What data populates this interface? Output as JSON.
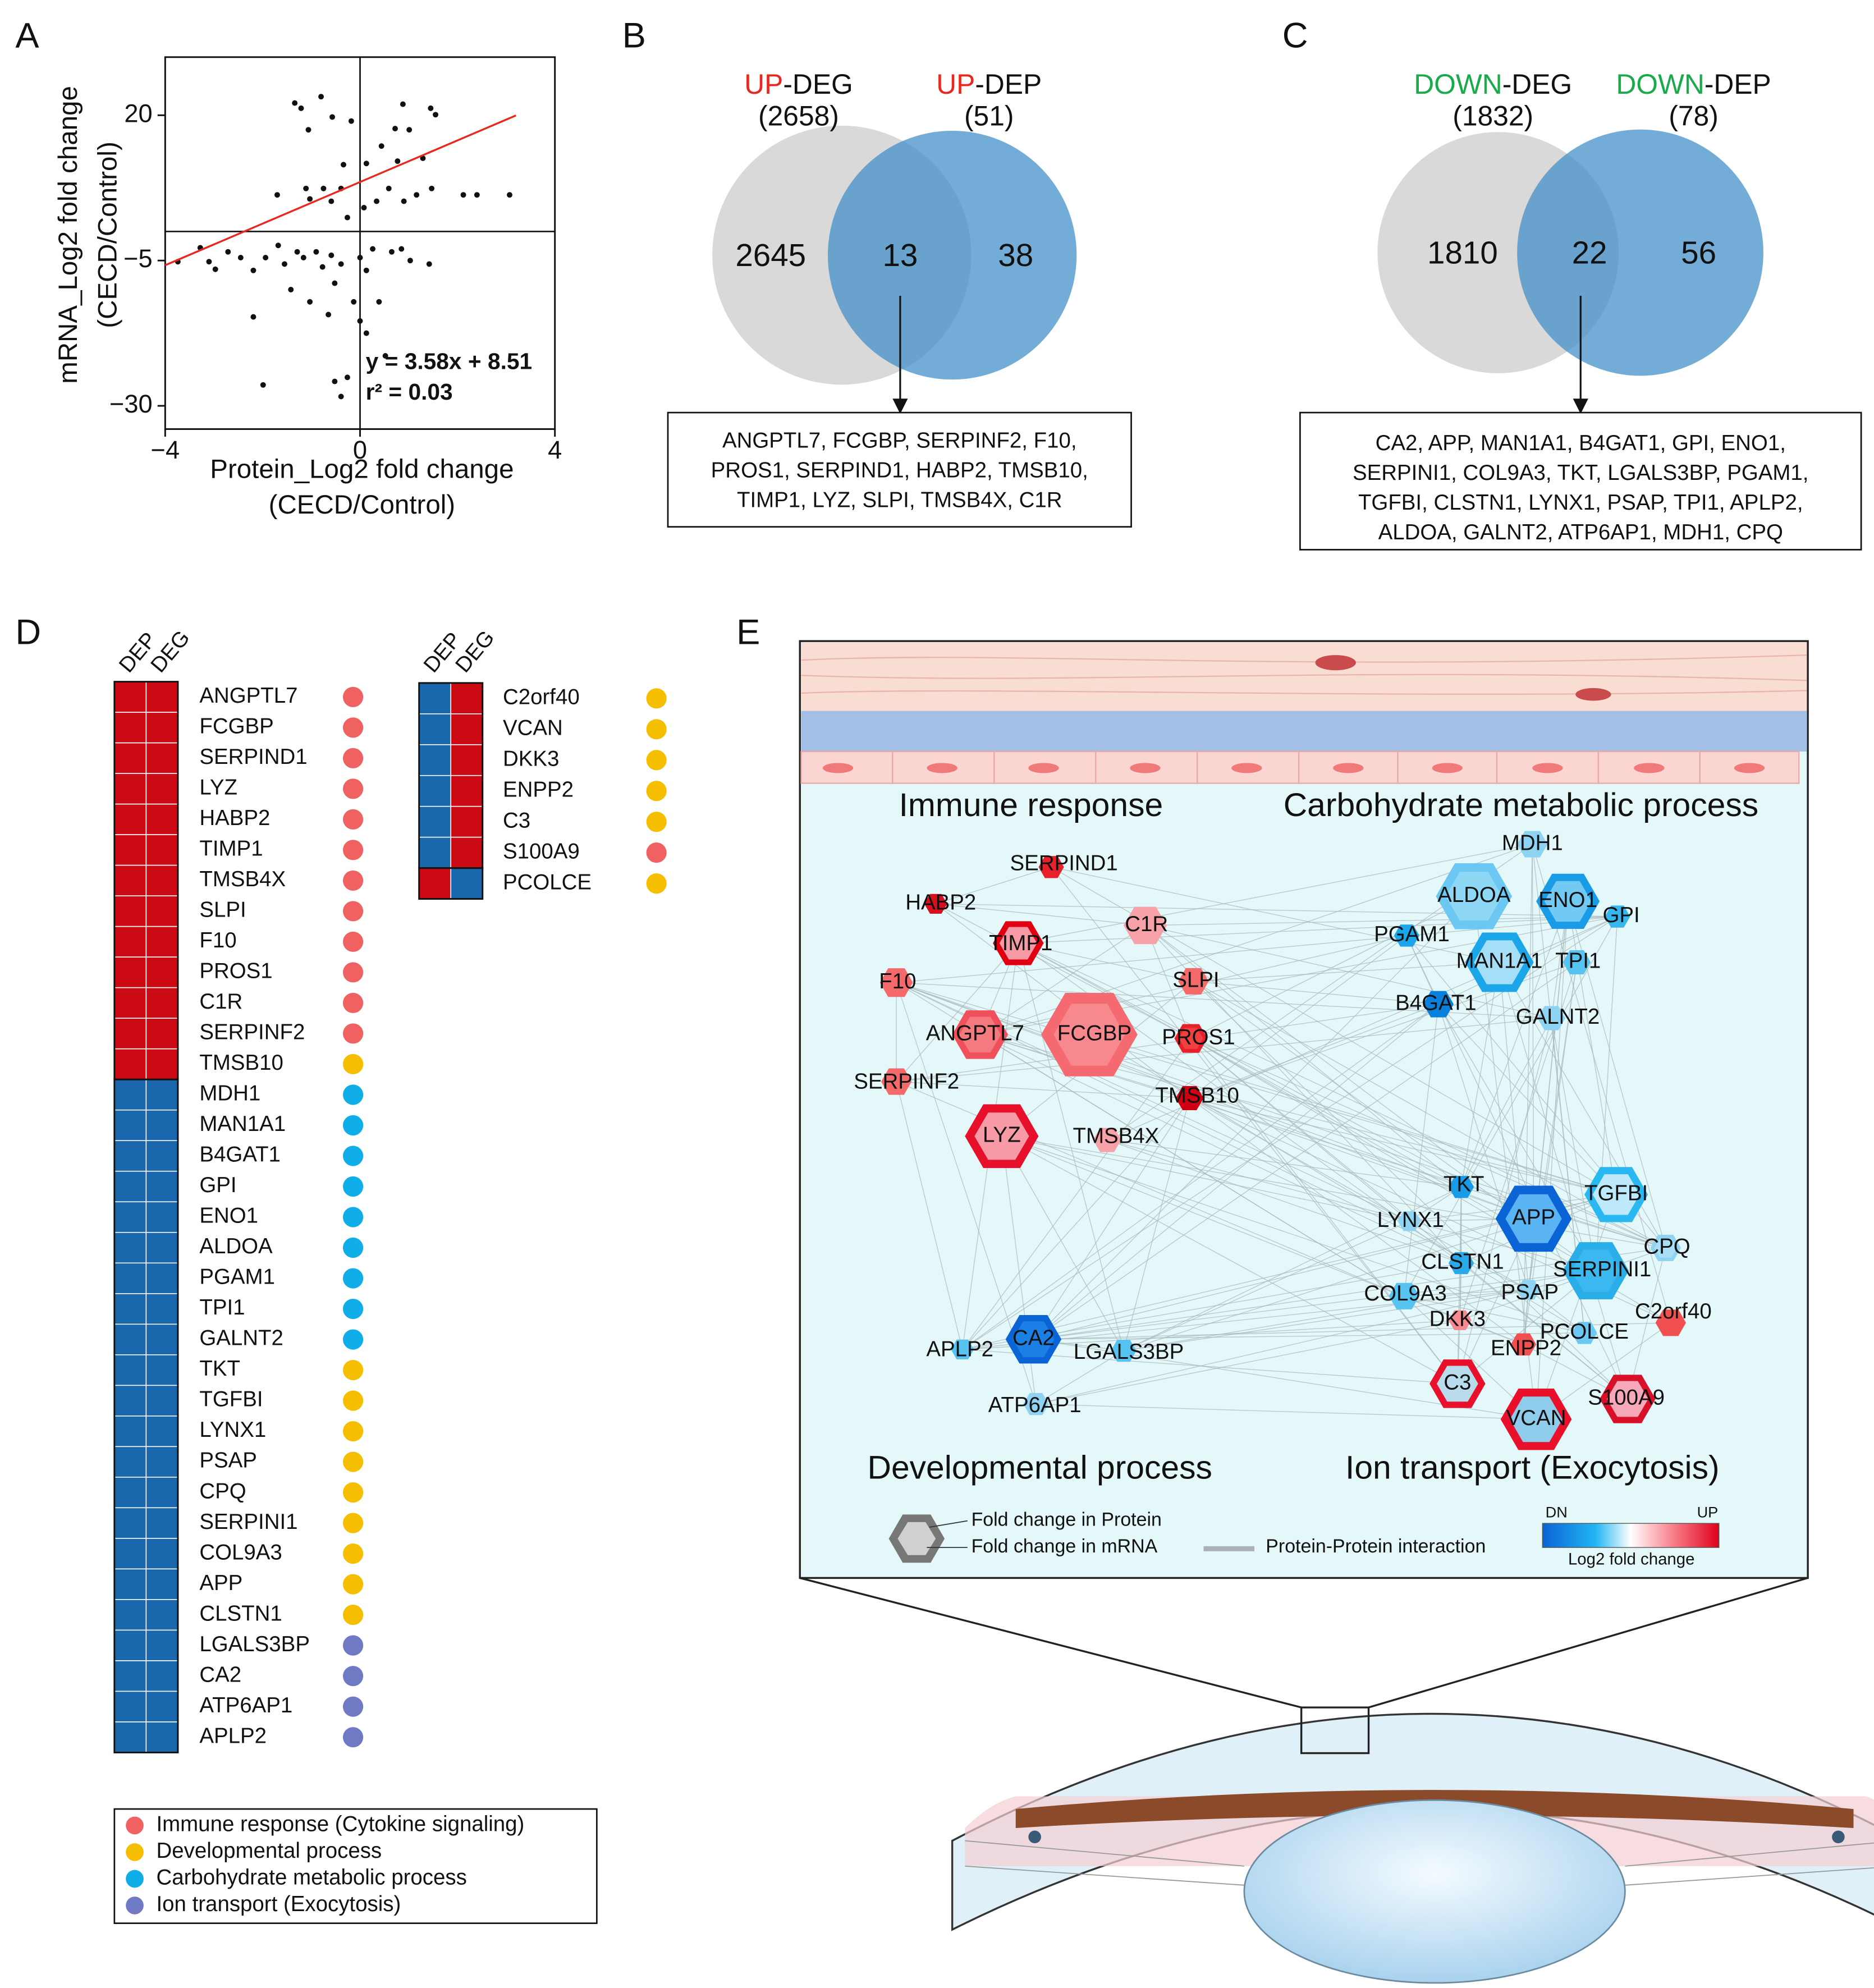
{
  "panel_letters": [
    "A",
    "B",
    "C",
    "D",
    "E"
  ],
  "chart_data": {
    "type": "scatter",
    "xlabel": [
      "Protein_Log2 fold change",
      "(CECD/Control)"
    ],
    "ylabel": [
      "mRNA_Log2 fold change",
      "(CECD/Control)"
    ],
    "color": "#111111",
    "x": [
      -1.34,
      -1.21,
      -0.8,
      -1.06,
      -0.57,
      -0.18,
      -0.34,
      0.88,
      1.45,
      1.55,
      1.01,
      0.72,
      0.44,
      0.13,
      0.77,
      1.29,
      1.47,
      2.12,
      2.4,
      3.07,
      1.16,
      0.9,
      0.59,
      0.34,
      0.08,
      -0.39,
      -0.75,
      -1.11,
      -1.7,
      -1.03,
      -0.59,
      -0.26,
      -3.74,
      -3.28,
      -3.1,
      -2.97,
      -2.71,
      -2.45,
      -2.19,
      -1.94,
      -1.68,
      -1.55,
      -1.29,
      -1.16,
      -0.9,
      -0.77,
      -0.59,
      -0.39,
      0.0,
      0.13,
      0.26,
      0.65,
      0.85,
      1.03,
      1.42,
      -0.52,
      -0.13,
      0.39,
      -1.42,
      -1.03,
      -0.65,
      0.0,
      -2.19,
      0.13,
      0.52,
      -0.26,
      -0.52,
      -1.99,
      -0.39
    ],
    "y": [
      22.1,
      21.2,
      23.2,
      17.5,
      19.7,
      19.0,
      11.5,
      21.9,
      21.2,
      20.1,
      17.5,
      17.7,
      14.7,
      11.7,
      12.1,
      12.6,
      7.4,
      6.3,
      6.3,
      6.3,
      6.3,
      5.2,
      7.4,
      5.2,
      4.1,
      7.4,
      7.4,
      7.4,
      6.3,
      5.6,
      5.2,
      2.4,
      -5.2,
      -2.8,
      -5.2,
      -6.5,
      -3.5,
      -4.5,
      -6.7,
      -4.5,
      -2.4,
      -5.6,
      -3.5,
      -4.5,
      -3.5,
      -6.1,
      -4.1,
      -5.6,
      -4.5,
      -6.7,
      -3.0,
      -3.5,
      -3.0,
      -5.0,
      -5.6,
      -8.9,
      -12.1,
      -12.1,
      -10.0,
      -12.1,
      -14.3,
      -15.4,
      -14.7,
      -17.5,
      -21.4,
      -25.1,
      -25.8,
      -26.4,
      -28.4
    ],
    "xlim": [
      -4,
      4
    ],
    "ylim": [
      -34,
      30
    ],
    "xticks": [
      {
        "value": -4,
        "label": "−4"
      },
      0,
      4
    ],
    "yticks": [
      20,
      {
        "value": -5,
        "label": "−5"
      },
      {
        "value": -30,
        "label": "−30"
      }
    ],
    "reference_lines": {
      "x": 0,
      "y": 0
    },
    "fit": {
      "slope": 3.58,
      "intercept": 8.51,
      "x": [
        -4,
        3.2
      ],
      "color": "#e8281e"
    },
    "annotations": [
      "y = 3.58x + 8.51",
      "r² = 0.03"
    ]
  },
  "venns": [
    {
      "left": {
        "prefix": "UP",
        "suffix": "-DEG",
        "count": "(2658)"
      },
      "right": {
        "prefix": "UP",
        "suffix": "-DEP",
        "count": "(51)"
      },
      "prefix_color": "#e8281e",
      "only_left": 2645,
      "both": 13,
      "only_right": 38,
      "genes": [
        "ANGPTL7, FCGBP, SERPINF2, F10,",
        "PROS1, SERPIND1, HABP2, TMSB10,",
        "TIMP1, LYZ, SLPI, TMSB4X, C1R"
      ]
    },
    {
      "left": {
        "prefix": "DOWN",
        "suffix": "-DEG",
        "count": "(1832)"
      },
      "right": {
        "prefix": "DOWN",
        "suffix": "-DEP",
        "count": "(78)"
      },
      "prefix_color": "#1aaa4a",
      "only_left": 1810,
      "both": 22,
      "only_right": 56,
      "genes": [
        "CA2, APP, MAN1A1, B4GAT1, GPI, ENO1,",
        "SERPINI1, COL9A3, TKT, LGALS3BP, PGAM1,",
        "TGFBI, CLSTN1, LYNX1, PSAP, TPI1, APLP2,",
        "ALDOA, GALNT2, ATP6AP1, MDH1, CPQ"
      ]
    }
  ],
  "heatmap": {
    "column_labels": [
      "DEP",
      "DEG"
    ],
    "colors": {
      "up": "#cc0a14",
      "down": "#1a67ad"
    },
    "tables": [
      {
        "rows": [
          {
            "gene": "ANGPTL7",
            "dep": "up",
            "deg": "up",
            "group": 0
          },
          {
            "gene": "FCGBP",
            "dep": "up",
            "deg": "up",
            "group": 0
          },
          {
            "gene": "SERPIND1",
            "dep": "up",
            "deg": "up",
            "group": 0
          },
          {
            "gene": "LYZ",
            "dep": "up",
            "deg": "up",
            "group": 0
          },
          {
            "gene": "HABP2",
            "dep": "up",
            "deg": "up",
            "group": 0
          },
          {
            "gene": "TIMP1",
            "dep": "up",
            "deg": "up",
            "group": 0
          },
          {
            "gene": "TMSB4X",
            "dep": "up",
            "deg": "up",
            "group": 0
          },
          {
            "gene": "SLPI",
            "dep": "up",
            "deg": "up",
            "group": 0
          },
          {
            "gene": "F10",
            "dep": "up",
            "deg": "up",
            "group": 0
          },
          {
            "gene": "PROS1",
            "dep": "up",
            "deg": "up",
            "group": 0
          },
          {
            "gene": "C1R",
            "dep": "up",
            "deg": "up",
            "group": 0
          },
          {
            "gene": "SERPINF2",
            "dep": "up",
            "deg": "up",
            "group": 0
          },
          {
            "gene": "TMSB10",
            "dep": "up",
            "deg": "up",
            "group": 1
          },
          {
            "gene": "MDH1",
            "dep": "down",
            "deg": "down",
            "group": 2
          },
          {
            "gene": "MAN1A1",
            "dep": "down",
            "deg": "down",
            "group": 2
          },
          {
            "gene": "B4GAT1",
            "dep": "down",
            "deg": "down",
            "group": 2
          },
          {
            "gene": "GPI",
            "dep": "down",
            "deg": "down",
            "group": 2
          },
          {
            "gene": "ENO1",
            "dep": "down",
            "deg": "down",
            "group": 2
          },
          {
            "gene": "ALDOA",
            "dep": "down",
            "deg": "down",
            "group": 2
          },
          {
            "gene": "PGAM1",
            "dep": "down",
            "deg": "down",
            "group": 2
          },
          {
            "gene": "TPI1",
            "dep": "down",
            "deg": "down",
            "group": 2
          },
          {
            "gene": "GALNT2",
            "dep": "down",
            "deg": "down",
            "group": 2
          },
          {
            "gene": "TKT",
            "dep": "down",
            "deg": "down",
            "group": 1
          },
          {
            "gene": "TGFBI",
            "dep": "down",
            "deg": "down",
            "group": 1
          },
          {
            "gene": "LYNX1",
            "dep": "down",
            "deg": "down",
            "group": 1
          },
          {
            "gene": "PSAP",
            "dep": "down",
            "deg": "down",
            "group": 1
          },
          {
            "gene": "CPQ",
            "dep": "down",
            "deg": "down",
            "group": 1
          },
          {
            "gene": "SERPINI1",
            "dep": "down",
            "deg": "down",
            "group": 1
          },
          {
            "gene": "COL9A3",
            "dep": "down",
            "deg": "down",
            "group": 1
          },
          {
            "gene": "APP",
            "dep": "down",
            "deg": "down",
            "group": 1
          },
          {
            "gene": "CLSTN1",
            "dep": "down",
            "deg": "down",
            "group": 1
          },
          {
            "gene": "LGALS3BP",
            "dep": "down",
            "deg": "down",
            "group": 3
          },
          {
            "gene": "CA2",
            "dep": "down",
            "deg": "down",
            "group": 3
          },
          {
            "gene": "ATP6AP1",
            "dep": "down",
            "deg": "down",
            "group": 3
          },
          {
            "gene": "APLP2",
            "dep": "down",
            "deg": "down",
            "group": 3
          }
        ]
      },
      {
        "rows": [
          {
            "gene": "C2orf40",
            "dep": "down",
            "deg": "up",
            "group": 1
          },
          {
            "gene": "VCAN",
            "dep": "down",
            "deg": "up",
            "group": 1
          },
          {
            "gene": "DKK3",
            "dep": "down",
            "deg": "up",
            "group": 1
          },
          {
            "gene": "ENPP2",
            "dep": "down",
            "deg": "up",
            "group": 1
          },
          {
            "gene": "C3",
            "dep": "down",
            "deg": "up",
            "group": 1
          },
          {
            "gene": "S100A9",
            "dep": "down",
            "deg": "up",
            "group": 0
          },
          {
            "gene": "PCOLCE",
            "dep": "up",
            "deg": "down",
            "group": 1
          }
        ]
      }
    ],
    "legend": [
      {
        "label": "Immune response (Cytokine signaling)",
        "color": "#f06262"
      },
      {
        "label": "Developmental process",
        "color": "#f5bf00"
      },
      {
        "label": "Carbohydrate metabolic process",
        "color": "#10aee8"
      },
      {
        "label": "Ion transport (Exocytosis)",
        "color": "#6f79c4"
      }
    ]
  },
  "network": {
    "group_labels": [
      "Immune response",
      "Carbohydrate metabolic process",
      "Developmental process",
      "Ion transport (Exocytosis)"
    ],
    "nodes": [
      {
        "label": "SERPIND1",
        "protein_color": "#e8202a",
        "mrna_color": "#e8202a"
      },
      {
        "label": "HABP2",
        "protein_color": "#d8101c",
        "mrna_color": "#d8101c"
      },
      {
        "label": "TIMP1",
        "protein_color": "#e00010",
        "mrna_color": "#f79aa5"
      },
      {
        "label": "C1R",
        "protein_color": "#f7a1a8",
        "mrna_color": "#f7a1a8"
      },
      {
        "label": "SLPI",
        "protein_color": "#f46a6a",
        "mrna_color": "#f46a6a"
      },
      {
        "label": "F10",
        "protein_color": "#f46a6a",
        "mrna_color": "#f46a6a"
      },
      {
        "label": "ANGPTL7",
        "protein_color": "#f0505a",
        "mrna_color": "#f47a80"
      },
      {
        "label": "FCGBP",
        "protein_color": "#f46a70",
        "mrna_color": "#f7888e"
      },
      {
        "label": "PROS1",
        "protein_color": "#e8202a",
        "mrna_color": "#f04040"
      },
      {
        "label": "SERPINF2",
        "protein_color": "#f46a6a",
        "mrna_color": "#f46a6a"
      },
      {
        "label": "TMSB10",
        "protein_color": "#d00010",
        "mrna_color": "#d00010"
      },
      {
        "label": "LYZ",
        "protein_color": "#e6102a",
        "mrna_color": "#f79aa5"
      },
      {
        "label": "TMSB4X",
        "protein_color": "#f7a1a8",
        "mrna_color": "#f7a1a8"
      },
      {
        "label": "MDH1",
        "protein_color": "#8fd3f3",
        "mrna_color": "#8fd3f3"
      },
      {
        "label": "ALDOA",
        "protein_color": "#6cc8f2",
        "mrna_color": "#8fd8f5"
      },
      {
        "label": "ENO1",
        "protein_color": "#1a9be6",
        "mrna_color": "#72c9f3"
      },
      {
        "label": "GPI",
        "protein_color": "#37b6ee",
        "mrna_color": "#37b6ee"
      },
      {
        "label": "PGAM1",
        "protein_color": "#1aa6e8",
        "mrna_color": "#1aa6e8"
      },
      {
        "label": "MAN1A1",
        "protein_color": "#1aa6e8",
        "mrna_color": "#a5def7"
      },
      {
        "label": "TPI1",
        "protein_color": "#56c3f0",
        "mrna_color": "#56c3f0"
      },
      {
        "label": "B4GAT1",
        "protein_color": "#0a80dd",
        "mrna_color": "#0a80dd"
      },
      {
        "label": "GALNT2",
        "protein_color": "#8fd3f3",
        "mrna_color": "#8fd3f3"
      },
      {
        "label": "TKT",
        "protein_color": "#1a9be6",
        "mrna_color": "#1a9be6"
      },
      {
        "label": "TGFBI",
        "protein_color": "#2ab8f2",
        "mrna_color": "#bde9fa"
      },
      {
        "label": "APP",
        "protein_color": "#0a64d6",
        "mrna_color": "#5ab3f2"
      },
      {
        "label": "LYNX1",
        "protein_color": "#8fd3f3",
        "mrna_color": "#8fd3f3"
      },
      {
        "label": "CPQ",
        "protein_color": "#8fd3f3",
        "mrna_color": "#a8dff6"
      },
      {
        "label": "CLSTN1",
        "protein_color": "#2aa8ea",
        "mrna_color": "#2aa8ea"
      },
      {
        "label": "SERPINI1",
        "protein_color": "#2aaeea",
        "mrna_color": "#3ab8ef"
      },
      {
        "label": "COL9A3",
        "protein_color": "#56c3f0",
        "mrna_color": "#56c3f0"
      },
      {
        "label": "PSAP",
        "protein_color": "#8fd3f3",
        "mrna_color": "#8fd3f3"
      },
      {
        "label": "C2orf40",
        "protein_color": "#f05050",
        "mrna_color": "#f05050"
      },
      {
        "label": "DKK3",
        "protein_color": "#f48a8e",
        "mrna_color": "#f48a8e"
      },
      {
        "label": "PCOLCE",
        "protein_color": "#6cc8f2",
        "mrna_color": "#6cc8f2"
      },
      {
        "label": "ENPP2",
        "protein_color": "#f05050",
        "mrna_color": "#f05050"
      },
      {
        "label": "C3",
        "protein_color": "#e8102a",
        "mrna_color": "#b8dcec"
      },
      {
        "label": "S100A9",
        "protein_color": "#d8102a",
        "mrna_color": "#f6a8b8"
      },
      {
        "label": "VCAN",
        "protein_color": "#e8102a",
        "mrna_color": "#8fcbea"
      },
      {
        "label": "APLP2",
        "protein_color": "#56c3f0",
        "mrna_color": "#56c3f0"
      },
      {
        "label": "CA2",
        "protein_color": "#0a64d6",
        "mrna_color": "#1a80e6"
      },
      {
        "label": "LGALS3BP",
        "protein_color": "#56c3f0",
        "mrna_color": "#56c3f0"
      },
      {
        "label": "ATP6AP1",
        "protein_color": "#8fd3f3",
        "mrna_color": "#8fd3f3"
      }
    ],
    "legend": {
      "protein": "Fold change in Protein",
      "mrna": "Fold change in mRNA",
      "ppi": "Protein-Protein interaction",
      "scale_low": "DN",
      "scale_high": "UP",
      "scale_title": "Log2 fold change"
    }
  }
}
